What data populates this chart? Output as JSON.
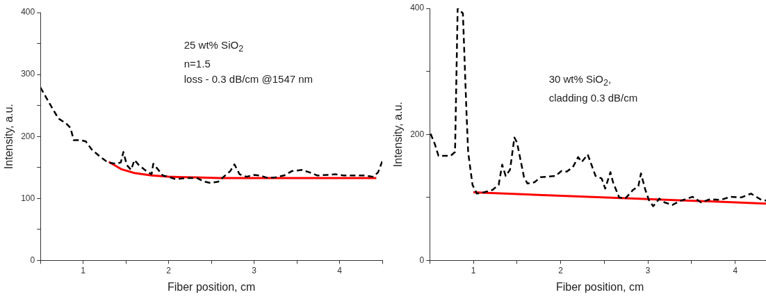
{
  "chart_data": [
    {
      "type": "line",
      "xlabel": "Fiber position, cm",
      "ylabel": "Intensity, a.u.",
      "xlim": [
        0.5,
        4.5
      ],
      "xticks": [
        {
          "value": 0.5,
          "label": null
        },
        1,
        {
          "value": 1.5,
          "label": null
        },
        2,
        {
          "value": 2.5,
          "label": null
        },
        3,
        {
          "value": 3.5,
          "label": null
        },
        4,
        {
          "value": 4.5,
          "label": null
        }
      ],
      "ylim": [
        0,
        400
      ],
      "yticks": [
        0,
        {
          "value": 50,
          "label": null
        },
        100,
        {
          "value": 150,
          "label": null
        },
        200,
        {
          "value": 250,
          "label": null
        },
        300,
        {
          "value": 350,
          "label": null
        },
        400
      ],
      "grid": false,
      "legend": false,
      "marker": "none",
      "annotations": [
        "25 wt% SiO$_{2}$",
        "n=1.5",
        "loss - 0.3 dB/cm @1547 nm"
      ],
      "series": [
        {
          "color": "#000000",
          "line_style": "dashed",
          "x": [
            0.5,
            0.62,
            0.71,
            0.8,
            0.85,
            0.89,
            0.97,
            1.03,
            1.1,
            1.21,
            1.29,
            1.38,
            1.44,
            1.47,
            1.51,
            1.56,
            1.6,
            1.65,
            1.74,
            1.8,
            1.82,
            1.88,
            1.93,
            2.0,
            2.08,
            2.2,
            2.33,
            2.42,
            2.49,
            2.58,
            2.66,
            2.72,
            2.77,
            2.83,
            2.91,
            3.0,
            3.07,
            3.16,
            3.25,
            3.35,
            3.44,
            3.56,
            3.65,
            3.74,
            3.86,
            3.95,
            4.05,
            4.14,
            4.3,
            4.39,
            4.45,
            4.5
          ],
          "values": [
            279,
            250,
            229,
            221,
            214,
            194,
            194,
            192,
            179,
            166,
            158,
            156,
            158,
            175,
            154,
            146,
            162,
            154,
            144,
            139,
            156,
            146,
            137,
            135,
            131,
            133,
            133,
            127,
            125,
            127,
            137,
            144,
            155,
            139,
            135,
            138,
            137,
            133,
            134,
            137,
            144,
            146,
            142,
            137,
            138,
            139,
            137,
            137,
            137,
            135,
            142,
            160
          ]
        },
        {
          "color": "#ff0000",
          "line_style": "solid",
          "x": [
            1.3,
            1.45,
            1.6,
            1.8,
            2.0,
            2.3,
            2.6,
            4.43
          ],
          "values": [
            159,
            147,
            141,
            137,
            135,
            134,
            133,
            133
          ]
        }
      ]
    },
    {
      "type": "line",
      "xlabel": "Fiber position, cm",
      "ylabel": "Intensity, a.u.",
      "xlim": [
        0.5,
        4.4
      ],
      "xticks": [
        {
          "value": 0.5,
          "label": null
        },
        1,
        {
          "value": 1.5,
          "label": null
        },
        2,
        {
          "value": 2.5,
          "label": null
        },
        3,
        {
          "value": 3.5,
          "label": null
        },
        4
      ],
      "ylim": [
        0,
        400
      ],
      "yticks": [
        0,
        {
          "value": 100,
          "label": null
        },
        200,
        {
          "value": 300,
          "label": null
        },
        400
      ],
      "grid": false,
      "legend": false,
      "marker": "none",
      "annotations": [
        "30 wt% SiO$_{2}$,",
        "cladding 0.3 dB/cm"
      ],
      "series": [
        {
          "color": "#000000",
          "line_style": "dashed",
          "x": [
            0.51,
            0.56,
            0.6,
            0.74,
            0.79,
            0.82,
            0.88,
            0.92,
            0.94,
            0.99,
            1.04,
            1.12,
            1.22,
            1.29,
            1.33,
            1.37,
            1.42,
            1.47,
            1.5,
            1.58,
            1.62,
            1.7,
            1.77,
            1.85,
            1.94,
            2.01,
            2.07,
            2.14,
            2.2,
            2.24,
            2.31,
            2.4,
            2.47,
            2.51,
            2.57,
            2.6,
            2.67,
            2.74,
            2.83,
            2.89,
            2.92,
            2.97,
            3.01,
            3.06,
            3.13,
            3.19,
            3.28,
            3.36,
            3.45,
            3.51,
            3.61,
            3.71,
            3.83,
            3.95,
            4.07,
            4.18,
            4.3,
            4.4
          ],
          "values": [
            201,
            184,
            166,
            166,
            172,
            400,
            392,
            239,
            172,
            120,
            106,
            108,
            112,
            120,
            152,
            134,
            144,
            195,
            187,
            132,
            122,
            124,
            132,
            133,
            134,
            142,
            141,
            148,
            164,
            156,
            168,
            134,
            130,
            114,
            140,
            124,
            100,
            98,
            112,
            118,
            138,
            112,
            96,
            86,
            98,
            92,
            88,
            94,
            98,
            101,
            92,
            97,
            96,
            101,
            100,
            106,
            96,
            94
          ]
        },
        {
          "color": "#ff0000",
          "line_style": "solid",
          "x": [
            1.0,
            4.4
          ],
          "values": [
            108,
            90
          ]
        }
      ]
    }
  ]
}
